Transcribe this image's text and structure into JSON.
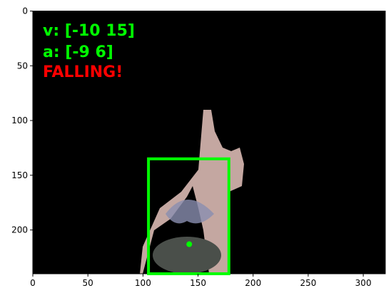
{
  "chart_data": {
    "type": "image",
    "xlim": [
      0,
      320
    ],
    "ylim": [
      240,
      0
    ],
    "xticks": [
      0,
      50,
      100,
      150,
      200,
      250,
      300
    ],
    "yticks": [
      0,
      50,
      100,
      150,
      200
    ],
    "overlay_texts": [
      "v: [-10  15]",
      "a: [-9  6]",
      "FALLING!"
    ],
    "box": {
      "x": [
        105,
        178
      ],
      "y": [
        135,
        240
      ]
    },
    "point": {
      "x": 142,
      "y": 213
    }
  }
}
